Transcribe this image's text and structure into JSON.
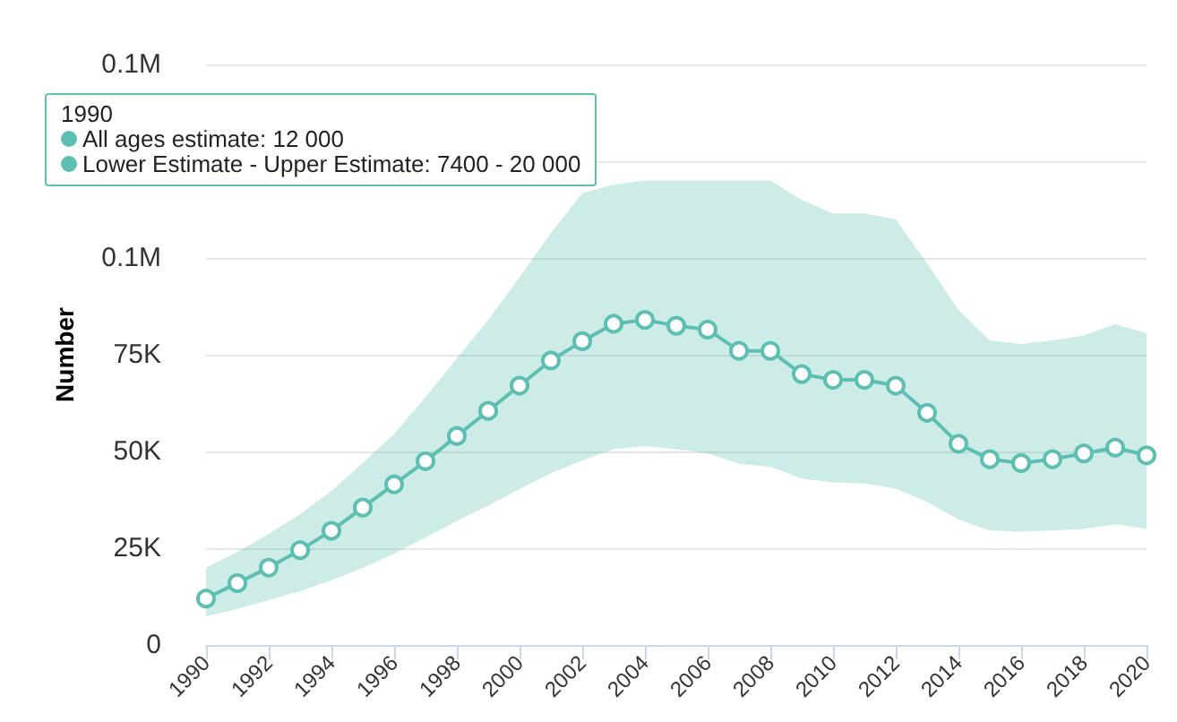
{
  "chart_data": {
    "type": "line",
    "ylabel": "Number",
    "x": [
      1990,
      1991,
      1992,
      1993,
      1994,
      1995,
      1996,
      1997,
      1998,
      1999,
      2000,
      2001,
      2002,
      2003,
      2004,
      2005,
      2006,
      2007,
      2008,
      2009,
      2010,
      2011,
      2012,
      2013,
      2014,
      2015,
      2016,
      2017,
      2018,
      2019,
      2020
    ],
    "series": [
      {
        "color": "#5cbfb1",
        "values": [
          12000,
          16000,
          20000,
          24500,
          29500,
          35500,
          41500,
          47500,
          54000,
          60500,
          67000,
          73500,
          78500,
          83000,
          84000,
          82500,
          81500,
          76000,
          76000,
          70000,
          68500,
          68500,
          67000,
          60000,
          52000,
          48000,
          47000,
          48000,
          49500,
          51000,
          49000
        ],
        "lower": [
          7400,
          9300,
          11600,
          13900,
          16700,
          19900,
          23600,
          27800,
          32000,
          36000,
          40300,
          44400,
          47700,
          50600,
          51400,
          50600,
          49500,
          46800,
          46000,
          43000,
          42000,
          41700,
          40400,
          37000,
          32400,
          29600,
          29300,
          29600,
          30000,
          31200,
          30000
        ],
        "upper": [
          20000,
          24000,
          28700,
          33800,
          39800,
          47000,
          54600,
          64000,
          74000,
          84000,
          95000,
          106500,
          116700,
          119000,
          120000,
          120000,
          120000,
          120000,
          120000,
          115000,
          111500,
          111500,
          110000,
          98600,
          86600,
          78700,
          77800,
          78700,
          80000,
          82900,
          80500
        ]
      }
    ],
    "xlim": [
      1990,
      2020
    ],
    "xticks": [
      1990,
      1992,
      1994,
      1996,
      1998,
      2000,
      2002,
      2004,
      2006,
      2008,
      2010,
      2012,
      2014,
      2016,
      2018,
      2020
    ],
    "ylim": [
      0,
      150000
    ],
    "yticks": [
      0,
      {
        "value": 25000,
        "label": "25K"
      },
      {
        "value": 50000,
        "label": "50K"
      },
      {
        "value": 75000,
        "label": "75K"
      },
      {
        "value": 100000,
        "label": "0.1M"
      },
      {
        "value": 125000,
        "label": null
      },
      {
        "value": 150000,
        "label": "0.1M"
      }
    ],
    "grid": "y",
    "marker": "circle",
    "line_style": "solid",
    "annotations": [
      "1990",
      "All ages estimate: 12 000",
      "Lower Estimate - Upper Estimate: 7400 - 20 000"
    ]
  }
}
